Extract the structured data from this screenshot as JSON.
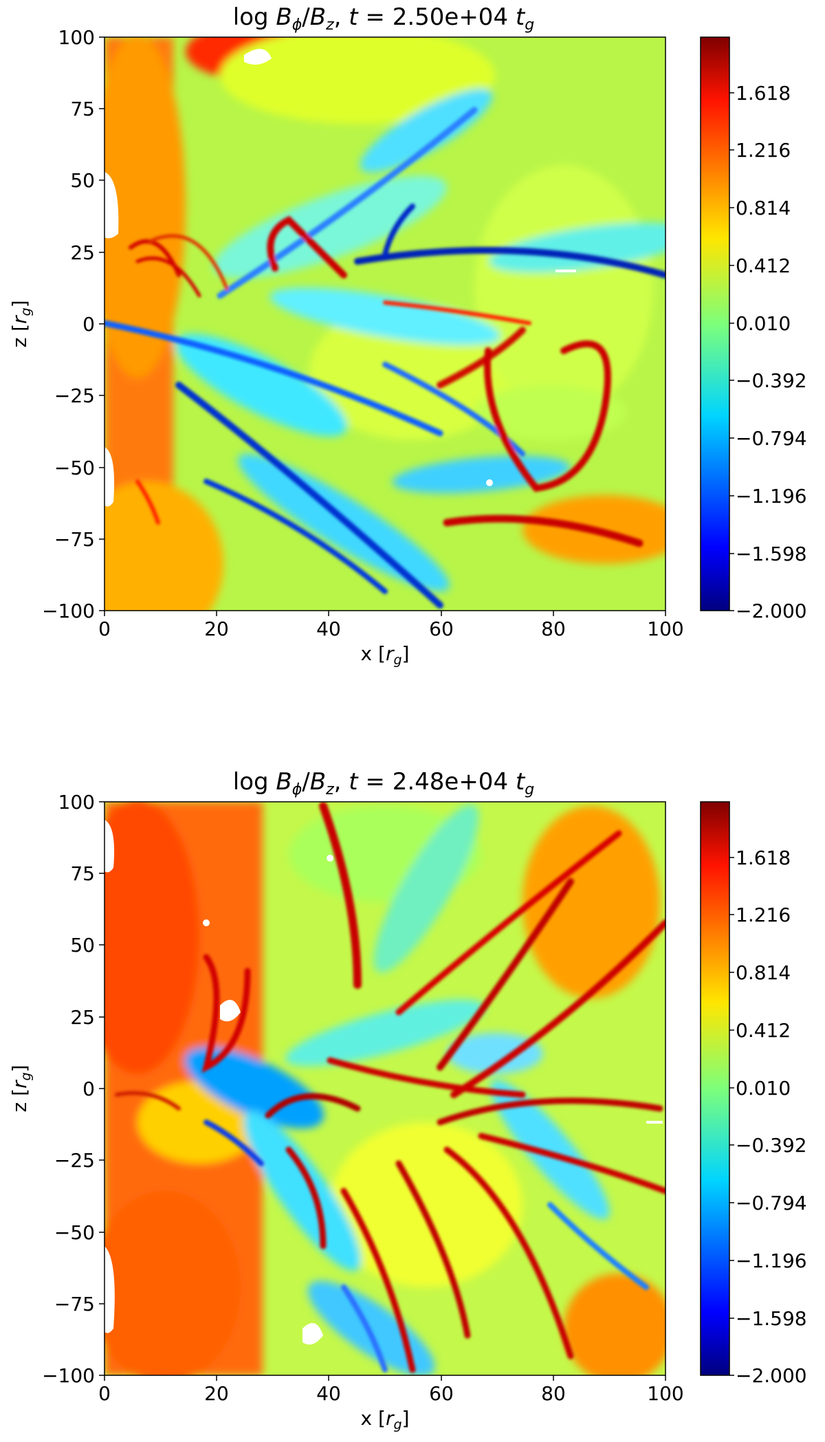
{
  "chart_data": [
    {
      "type": "heatmap",
      "title": "log Bϕ/Bz, t = 2.50e+04 tg",
      "title_parts": {
        "prefix": "log ",
        "b1": "B",
        "sub1": "ϕ",
        "slash": "/",
        "b2": "B",
        "sub2": "z",
        "mid": ", ",
        "t": "t",
        "eq": " = 2.50e+04 ",
        "tg": "t",
        "subg": "g"
      },
      "xlabel": "x [rg]",
      "xlabel_parts": {
        "pre": "x [",
        "r": "r",
        "sub": "g",
        "post": "]"
      },
      "ylabel": "z [rg]",
      "ylabel_parts": {
        "pre": "z [",
        "r": "r",
        "sub": "g",
        "post": "]"
      },
      "xlim": [
        0,
        100
      ],
      "ylim": [
        -100,
        100
      ],
      "xticks": [
        "0",
        "20",
        "40",
        "60",
        "80",
        "100"
      ],
      "yticks": [
        "100",
        "75",
        "50",
        "25",
        "0",
        "−25",
        "−50",
        "−75",
        "−100"
      ],
      "colorbar": {
        "colormap": "jet",
        "range": [
          -2.0,
          2.0
        ],
        "ticks": [
          "1.618",
          "1.216",
          "0.814",
          "0.412",
          "0.010",
          "−0.392",
          "−0.794",
          "−1.196",
          "−1.598",
          "−2.000"
        ]
      }
    },
    {
      "type": "heatmap",
      "title": "log Bϕ/Bz, t = 2.48e+04 tg",
      "title_parts": {
        "prefix": "log ",
        "b1": "B",
        "sub1": "ϕ",
        "slash": "/",
        "b2": "B",
        "sub2": "z",
        "mid": ", ",
        "t": "t",
        "eq": " = 2.48e+04 ",
        "tg": "t",
        "subg": "g"
      },
      "xlabel": "x [rg]",
      "xlabel_parts": {
        "pre": "x [",
        "r": "r",
        "sub": "g",
        "post": "]"
      },
      "ylabel": "z [rg]",
      "ylabel_parts": {
        "pre": "z [",
        "r": "r",
        "sub": "g",
        "post": "]"
      },
      "xlim": [
        0,
        100
      ],
      "ylim": [
        -100,
        100
      ],
      "xticks": [
        "0",
        "20",
        "40",
        "60",
        "80",
        "100"
      ],
      "yticks": [
        "100",
        "75",
        "50",
        "25",
        "0",
        "−25",
        "−50",
        "−75",
        "−100"
      ],
      "colorbar": {
        "colormap": "jet",
        "range": [
          -2.0,
          2.0
        ],
        "ticks": [
          "1.618",
          "1.216",
          "0.814",
          "0.412",
          "0.010",
          "−0.392",
          "−0.794",
          "−1.196",
          "−1.598",
          "−2.000"
        ]
      }
    }
  ]
}
